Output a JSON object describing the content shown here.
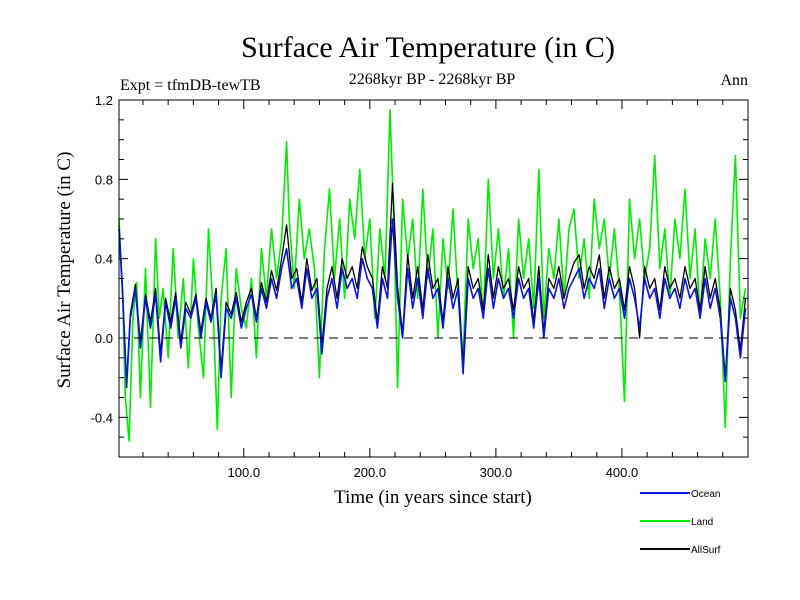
{
  "chart_data": {
    "type": "line",
    "title": "Surface Air Temperature (in C)",
    "subtitle": "2268kyr BP - 2268kyr BP",
    "left_label": "Expt = tfmDB-tewTB",
    "right_label": "Ann",
    "xlabel": "Time (in years since start)",
    "ylabel": "Surface Air Temperature (in C)",
    "xlim": [
      1,
      500
    ],
    "ylim": [
      -0.6,
      1.2
    ],
    "x_ticks": [
      100,
      200,
      300,
      400
    ],
    "x_tick_labels": [
      "100.0",
      "200.0",
      "300.0",
      "400.0"
    ],
    "y_ticks": [
      -0.4,
      0.0,
      0.4,
      0.8,
      1.2
    ],
    "y_tick_labels": [
      "-0.4",
      "0.0",
      "0.4",
      "0.8",
      "1.2"
    ],
    "reference_line": {
      "y": 0.0,
      "style": "dashed"
    },
    "legend_position": "bottom-right",
    "series": [
      {
        "name": "Land",
        "color": "#00ee00",
        "x": [
          1,
          4,
          6,
          9,
          12,
          15,
          18,
          22,
          26,
          30,
          33,
          36,
          40,
          44,
          48,
          52,
          56,
          60,
          64,
          68,
          72,
          76,
          79,
          82,
          86,
          90,
          94,
          98,
          102,
          106,
          110,
          114,
          118,
          122,
          126,
          130,
          134,
          136,
          140,
          144,
          148,
          152,
          156,
          160,
          164,
          168,
          172,
          176,
          180,
          184,
          188,
          192,
          196,
          200,
          204,
          208,
          212,
          216,
          219,
          222,
          226,
          230,
          234,
          238,
          242,
          246,
          250,
          254,
          258,
          262,
          266,
          270,
          274,
          278,
          282,
          286,
          290,
          294,
          298,
          302,
          306,
          310,
          314,
          318,
          322,
          326,
          330,
          334,
          338,
          342,
          346,
          350,
          354,
          358,
          362,
          366,
          370,
          374,
          378,
          382,
          386,
          390,
          394,
          398,
          402,
          406,
          410,
          414,
          418,
          422,
          426,
          430,
          434,
          438,
          442,
          446,
          450,
          454,
          458,
          462,
          466,
          470,
          474,
          478,
          482,
          486,
          490,
          494,
          498
        ],
        "values": [
          0.6,
          0.2,
          -0.3,
          -0.52,
          0.1,
          0.28,
          -0.3,
          0.35,
          -0.35,
          0.5,
          0.1,
          0.25,
          -0.1,
          0.45,
          0.0,
          0.3,
          -0.15,
          0.4,
          0.05,
          -0.2,
          0.55,
          0.1,
          -0.46,
          0.2,
          0.45,
          -0.3,
          0.35,
          0.15,
          0.05,
          0.3,
          -0.1,
          0.45,
          0.2,
          0.55,
          0.3,
          0.5,
          0.99,
          0.6,
          0.25,
          0.7,
          0.4,
          0.55,
          0.35,
          -0.2,
          0.45,
          0.75,
          0.3,
          0.6,
          0.2,
          0.7,
          0.5,
          0.85,
          0.4,
          0.6,
          0.1,
          0.55,
          0.3,
          1.15,
          0.6,
          -0.25,
          0.7,
          0.4,
          0.6,
          0.2,
          0.75,
          0.3,
          0.55,
          0.0,
          0.5,
          0.25,
          0.65,
          0.2,
          -0.1,
          0.6,
          0.35,
          0.5,
          0.1,
          0.8,
          0.3,
          0.55,
          0.2,
          0.45,
          0.0,
          0.6,
          0.3,
          0.5,
          0.15,
          0.85,
          0.1,
          0.45,
          0.3,
          0.6,
          0.2,
          0.55,
          0.65,
          0.3,
          0.5,
          0.2,
          0.7,
          0.45,
          0.6,
          0.3,
          0.55,
          0.25,
          -0.32,
          0.7,
          0.4,
          0.6,
          0.3,
          0.45,
          0.92,
          0.35,
          0.55,
          0.2,
          0.6,
          0.4,
          0.75,
          0.3,
          0.55,
          0.1,
          0.5,
          0.3,
          0.6,
          0.2,
          -0.45,
          0.4,
          0.92,
          0.1,
          0.25
        ],
        "legend_label": "Land"
      },
      {
        "name": "Ocean",
        "color": "#0a14e0",
        "x": [
          1,
          4,
          7,
          10,
          14,
          18,
          22,
          26,
          30,
          34,
          38,
          42,
          46,
          50,
          54,
          58,
          62,
          66,
          70,
          74,
          78,
          82,
          86,
          90,
          94,
          98,
          102,
          106,
          110,
          114,
          118,
          122,
          126,
          130,
          134,
          138,
          142,
          146,
          150,
          154,
          158,
          162,
          166,
          170,
          174,
          178,
          182,
          186,
          190,
          194,
          198,
          202,
          206,
          210,
          214,
          218,
          222,
          226,
          230,
          234,
          238,
          242,
          246,
          250,
          254,
          258,
          262,
          266,
          270,
          274,
          278,
          282,
          286,
          290,
          294,
          298,
          302,
          306,
          310,
          314,
          318,
          322,
          326,
          330,
          334,
          338,
          342,
          346,
          350,
          354,
          358,
          362,
          366,
          370,
          374,
          378,
          382,
          386,
          390,
          394,
          398,
          402,
          406,
          410,
          414,
          418,
          422,
          426,
          430,
          434,
          438,
          442,
          446,
          450,
          454,
          458,
          462,
          466,
          470,
          474,
          478,
          482,
          486,
          490,
          494,
          498
        ],
        "values": [
          0.55,
          0.2,
          -0.25,
          0.1,
          0.25,
          -0.05,
          0.2,
          0.05,
          0.22,
          -0.12,
          0.18,
          0.05,
          0.2,
          -0.05,
          0.15,
          0.1,
          0.2,
          0.0,
          0.18,
          0.08,
          0.22,
          -0.2,
          0.15,
          0.1,
          0.2,
          0.05,
          0.15,
          0.22,
          0.08,
          0.25,
          0.15,
          0.3,
          0.2,
          0.35,
          0.45,
          0.25,
          0.3,
          0.15,
          0.35,
          0.2,
          0.25,
          -0.08,
          0.2,
          0.3,
          0.15,
          0.35,
          0.25,
          0.3,
          0.2,
          0.4,
          0.3,
          0.25,
          0.05,
          0.3,
          0.2,
          0.6,
          0.2,
          0.0,
          0.35,
          0.15,
          0.3,
          0.1,
          0.35,
          0.2,
          0.25,
          0.05,
          0.3,
          0.15,
          0.25,
          -0.18,
          0.3,
          0.2,
          0.25,
          0.1,
          0.35,
          0.15,
          0.3,
          0.2,
          0.25,
          0.1,
          0.3,
          0.2,
          0.25,
          0.05,
          0.3,
          0.0,
          0.25,
          0.2,
          0.3,
          0.15,
          0.25,
          0.3,
          0.35,
          0.2,
          0.3,
          0.25,
          0.35,
          0.15,
          0.3,
          0.2,
          0.25,
          0.1,
          0.3,
          0.2,
          0.05,
          0.3,
          0.2,
          0.25,
          0.1,
          0.3,
          0.2,
          0.25,
          0.15,
          0.3,
          0.2,
          0.25,
          0.1,
          0.3,
          0.15,
          0.25,
          0.1,
          -0.22,
          0.2,
          0.1,
          -0.1,
          0.15
        ],
        "legend_label": "Ocean"
      },
      {
        "name": "AllSurf",
        "color": "#000000",
        "x": [
          1,
          4,
          7,
          10,
          14,
          18,
          22,
          26,
          30,
          34,
          38,
          42,
          46,
          50,
          54,
          58,
          62,
          66,
          70,
          74,
          78,
          82,
          86,
          90,
          94,
          98,
          102,
          106,
          110,
          114,
          118,
          122,
          126,
          130,
          134,
          138,
          142,
          146,
          150,
          154,
          158,
          162,
          166,
          170,
          174,
          178,
          182,
          186,
          190,
          194,
          198,
          202,
          206,
          210,
          214,
          218,
          222,
          226,
          230,
          234,
          238,
          242,
          246,
          250,
          254,
          258,
          262,
          266,
          270,
          274,
          278,
          282,
          286,
          290,
          294,
          298,
          302,
          306,
          310,
          314,
          318,
          322,
          326,
          330,
          334,
          338,
          342,
          346,
          350,
          354,
          358,
          362,
          366,
          370,
          374,
          378,
          382,
          386,
          390,
          394,
          398,
          402,
          406,
          410,
          414,
          418,
          422,
          426,
          430,
          434,
          438,
          442,
          446,
          450,
          454,
          458,
          462,
          466,
          470,
          474,
          478,
          482,
          486,
          490,
          494,
          498
        ],
        "values": [
          0.57,
          0.22,
          -0.22,
          0.12,
          0.27,
          -0.02,
          0.22,
          0.08,
          0.25,
          -0.08,
          0.2,
          0.08,
          0.23,
          -0.02,
          0.18,
          0.12,
          0.22,
          0.03,
          0.2,
          0.1,
          0.25,
          -0.16,
          0.18,
          0.12,
          0.23,
          0.08,
          0.18,
          0.25,
          0.1,
          0.28,
          0.18,
          0.34,
          0.24,
          0.4,
          0.57,
          0.3,
          0.35,
          0.18,
          0.4,
          0.24,
          0.3,
          -0.04,
          0.25,
          0.36,
          0.2,
          0.4,
          0.3,
          0.36,
          0.25,
          0.46,
          0.36,
          0.3,
          0.08,
          0.36,
          0.25,
          0.78,
          0.26,
          0.02,
          0.42,
          0.2,
          0.36,
          0.14,
          0.42,
          0.25,
          0.3,
          0.08,
          0.36,
          0.2,
          0.3,
          -0.14,
          0.36,
          0.25,
          0.3,
          0.14,
          0.42,
          0.2,
          0.36,
          0.25,
          0.3,
          0.14,
          0.36,
          0.25,
          0.3,
          0.08,
          0.36,
          0.03,
          0.3,
          0.25,
          0.36,
          0.2,
          0.3,
          0.38,
          0.42,
          0.25,
          0.36,
          0.3,
          0.42,
          0.2,
          0.36,
          0.25,
          0.3,
          0.14,
          0.36,
          0.25,
          0.0,
          0.36,
          0.25,
          0.3,
          0.14,
          0.36,
          0.25,
          0.3,
          0.2,
          0.36,
          0.25,
          0.3,
          0.14,
          0.36,
          0.2,
          0.3,
          0.14,
          -0.2,
          0.25,
          0.14,
          -0.06,
          0.2
        ],
        "legend_label": "AllSurf"
      }
    ]
  }
}
